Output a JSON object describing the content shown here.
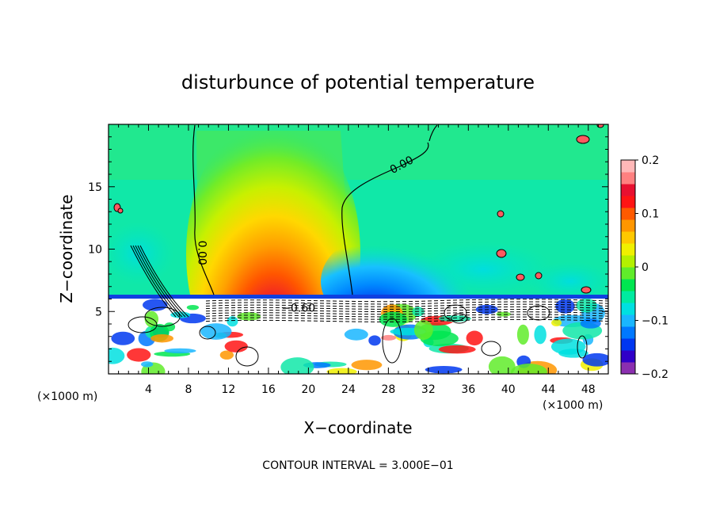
{
  "chart_data": {
    "type": "heatmap",
    "title": "disturbunce of potential temperature",
    "xlabel": "X−coordinate",
    "ylabel": "Z−coordinate",
    "x_unit": "(×1000 m)",
    "x_unit_right": "(×1000 m)",
    "footer": "CONTOUR INTERVAL = 3.000E−01",
    "xlim": [
      0,
      50
    ],
    "ylim": [
      0,
      20
    ],
    "x_ticks": [
      4,
      8,
      12,
      16,
      20,
      24,
      28,
      32,
      36,
      40,
      44,
      48
    ],
    "x_tick_labels": [
      "4",
      "8",
      "12",
      "16",
      "20",
      "24",
      "28",
      "32",
      "36",
      "40",
      "44",
      "48"
    ],
    "y_ticks": [
      5,
      10,
      15
    ],
    "y_tick_labels": [
      "5",
      "10",
      "15"
    ],
    "contour_labels": [
      {
        "text": "0.00",
        "x": 29.5,
        "y": 16.5
      },
      {
        "text": "0.00",
        "x": 9.0,
        "y": 9.7
      },
      {
        "text": "−0.60",
        "x": 19.0,
        "y": 5.0
      }
    ],
    "colorbar": {
      "min": -0.2,
      "max": 0.2,
      "ticks": [
        0.2,
        0.1,
        0,
        -0.1,
        -0.2
      ],
      "tick_labels": [
        "0.2",
        "0.1",
        "0",
        "−0.1",
        "−0.2"
      ],
      "colors": [
        "#8b2fb0",
        "#3000c8",
        "#0036f0",
        "#0078ff",
        "#19b6ff",
        "#00e0e0",
        "#00eba0",
        "#00e650",
        "#60ec2a",
        "#b4f000",
        "#f0f000",
        "#ffc800",
        "#ff9600",
        "#ff5a00",
        "#ff1414",
        "#e81030",
        "#ff8080",
        "#ffb8b8"
      ]
    },
    "field": {
      "background_color": "#0fe9a6",
      "warm_plume": {
        "x_range": [
          9,
          25
        ],
        "z_range": [
          6,
          20
        ],
        "peak_x": 16.5,
        "peak_z": 7,
        "peak_value": 0.2
      },
      "cool_region": {
        "x_range": [
          25,
          34
        ],
        "z_range": [
          6,
          12
        ],
        "peak_x": 27,
        "peak_z": 7,
        "peak_value": -0.15
      },
      "inversion_layer_z": 6.0,
      "boundary_layer_z_range": [
        0,
        6
      ]
    }
  }
}
